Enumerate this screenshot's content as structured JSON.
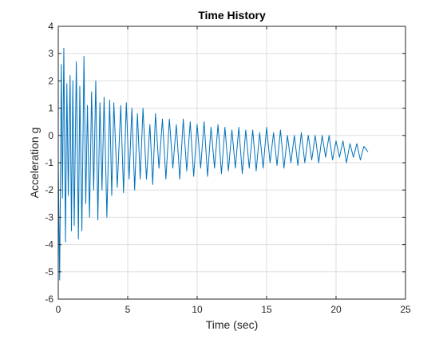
{
  "chart_data": {
    "type": "line",
    "title": "Time History",
    "xlabel": "Time (sec)",
    "ylabel": "Acceleration g",
    "xlim": [
      0,
      25
    ],
    "ylim": [
      -6,
      4
    ],
    "xticks": [
      0,
      5,
      10,
      15,
      20,
      25
    ],
    "yticks": [
      -6,
      -5,
      -4,
      -3,
      -2,
      -1,
      0,
      1,
      2,
      3,
      4
    ],
    "grid": true,
    "series": [
      {
        "color": "#0072BD",
        "x": [
          0.0,
          0.1,
          0.22,
          0.3,
          0.4,
          0.52,
          0.62,
          0.72,
          0.85,
          0.95,
          1.05,
          1.15,
          1.3,
          1.45,
          1.55,
          1.7,
          1.85,
          1.98,
          2.1,
          2.25,
          2.4,
          2.55,
          2.7,
          2.85,
          3.0,
          3.15,
          3.3,
          3.5,
          3.7,
          3.85,
          4.0,
          4.25,
          4.5,
          4.7,
          4.9,
          5.1,
          5.3,
          5.5,
          5.7,
          5.9,
          6.1,
          6.35,
          6.6,
          6.8,
          7.0,
          7.25,
          7.5,
          7.75,
          8.0,
          8.25,
          8.5,
          8.75,
          9.0,
          9.25,
          9.5,
          9.75,
          10.0,
          10.25,
          10.5,
          10.75,
          11.0,
          11.25,
          11.5,
          11.75,
          12.0,
          12.25,
          12.5,
          12.75,
          13.0,
          13.25,
          13.5,
          13.75,
          14.0,
          14.25,
          14.5,
          14.75,
          15.0,
          15.25,
          15.5,
          15.75,
          16.0,
          16.25,
          16.5,
          16.75,
          17.0,
          17.25,
          17.5,
          17.75,
          18.0,
          18.25,
          18.5,
          18.75,
          19.0,
          19.25,
          19.5,
          19.75,
          20.0,
          20.25,
          20.5,
          20.75,
          21.0,
          21.25,
          21.5,
          21.75,
          22.0,
          22.3
        ],
        "y": [
          -1.0,
          -5.3,
          2.6,
          -2.3,
          3.2,
          -3.9,
          1.9,
          -2.2,
          2.2,
          -3.5,
          2.0,
          -3.3,
          2.7,
          -3.8,
          1.8,
          -3.5,
          2.9,
          -2.5,
          1.1,
          -3.0,
          1.6,
          -2.0,
          2.0,
          -3.1,
          1.2,
          -2.0,
          1.4,
          -3.0,
          1.3,
          -2.2,
          1.2,
          -1.9,
          1.1,
          -2.1,
          1.2,
          -1.6,
          1.0,
          -2.0,
          0.8,
          -1.6,
          1.0,
          -1.6,
          0.4,
          -1.8,
          0.8,
          -1.2,
          0.6,
          -1.6,
          0.6,
          -1.2,
          0.4,
          -1.6,
          0.6,
          -1.3,
          0.5,
          -1.5,
          0.4,
          -1.2,
          0.5,
          -1.5,
          0.3,
          -1.2,
          0.4,
          -1.4,
          0.3,
          -1.3,
          0.2,
          -1.2,
          0.3,
          -1.4,
          0.2,
          -1.2,
          0.2,
          -1.3,
          0.1,
          -1.2,
          0.3,
          -1.0,
          0.1,
          -1.1,
          0.2,
          -1.2,
          0.0,
          -1.0,
          0.0,
          -1.1,
          0.1,
          -1.0,
          0.0,
          -0.9,
          0.0,
          -1.0,
          0.0,
          -0.8,
          0.0,
          -0.9,
          -0.2,
          -0.8,
          -0.2,
          -1.0,
          -0.3,
          -0.8,
          -0.3,
          -0.9,
          -0.4,
          -0.6
        ]
      }
    ]
  }
}
